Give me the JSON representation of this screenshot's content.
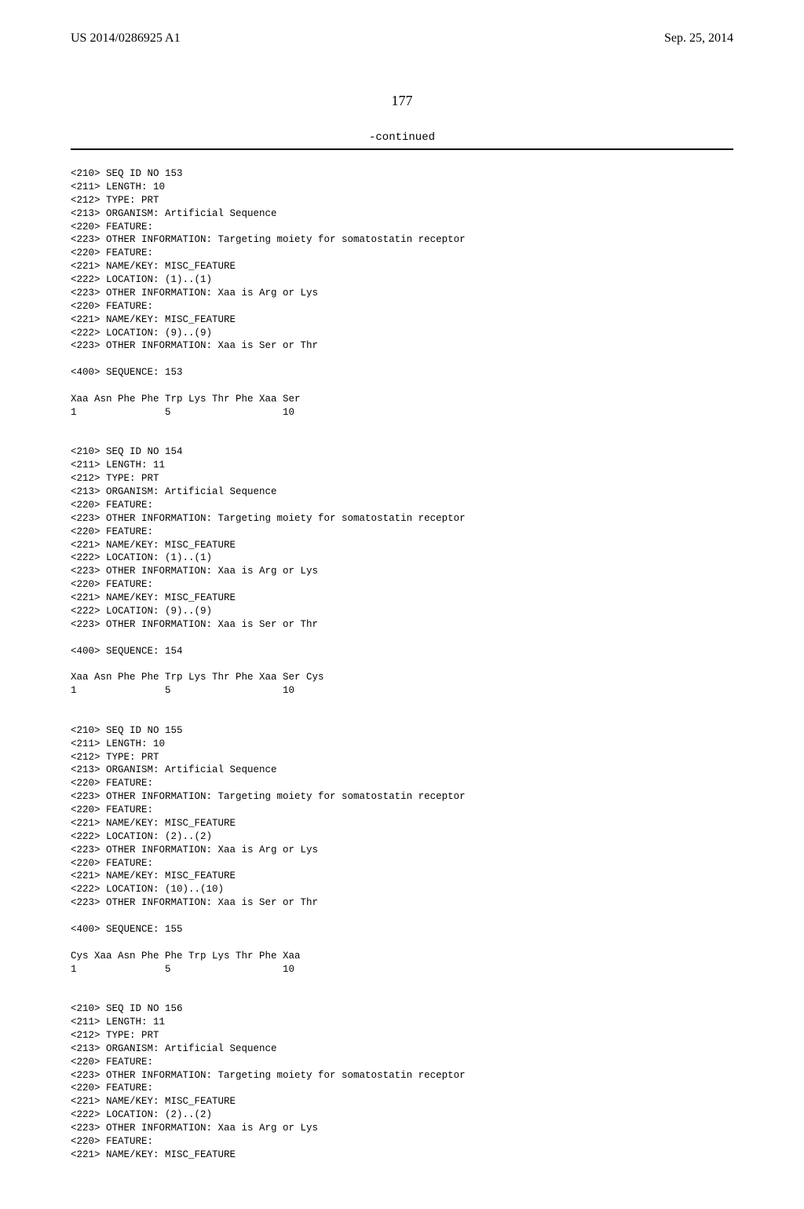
{
  "header": {
    "publication_id": "US 2014/0286925 A1",
    "publication_date": "Sep. 25, 2014"
  },
  "page_number": "177",
  "continued_label": "-continued",
  "blocks": [
    {
      "lines": [
        "<210> SEQ ID NO 153",
        "<211> LENGTH: 10",
        "<212> TYPE: PRT",
        "<213> ORGANISM: Artificial Sequence",
        "<220> FEATURE:",
        "<223> OTHER INFORMATION: Targeting moiety for somatostatin receptor",
        "<220> FEATURE:",
        "<221> NAME/KEY: MISC_FEATURE",
        "<222> LOCATION: (1)..(1)",
        "<223> OTHER INFORMATION: Xaa is Arg or Lys",
        "<220> FEATURE:",
        "<221> NAME/KEY: MISC_FEATURE",
        "<222> LOCATION: (9)..(9)",
        "<223> OTHER INFORMATION: Xaa is Ser or Thr",
        "",
        "<400> SEQUENCE: 153",
        "",
        "Xaa Asn Phe Phe Trp Lys Thr Phe Xaa Ser",
        "1               5                   10",
        "",
        "",
        "<210> SEQ ID NO 154",
        "<211> LENGTH: 11",
        "<212> TYPE: PRT",
        "<213> ORGANISM: Artificial Sequence",
        "<220> FEATURE:",
        "<223> OTHER INFORMATION: Targeting moiety for somatostatin receptor",
        "<220> FEATURE:",
        "<221> NAME/KEY: MISC_FEATURE",
        "<222> LOCATION: (1)..(1)",
        "<223> OTHER INFORMATION: Xaa is Arg or Lys",
        "<220> FEATURE:",
        "<221> NAME/KEY: MISC_FEATURE",
        "<222> LOCATION: (9)..(9)",
        "<223> OTHER INFORMATION: Xaa is Ser or Thr",
        "",
        "<400> SEQUENCE: 154",
        "",
        "Xaa Asn Phe Phe Trp Lys Thr Phe Xaa Ser Cys",
        "1               5                   10",
        "",
        "",
        "<210> SEQ ID NO 155",
        "<211> LENGTH: 10",
        "<212> TYPE: PRT",
        "<213> ORGANISM: Artificial Sequence",
        "<220> FEATURE:",
        "<223> OTHER INFORMATION: Targeting moiety for somatostatin receptor",
        "<220> FEATURE:",
        "<221> NAME/KEY: MISC_FEATURE",
        "<222> LOCATION: (2)..(2)",
        "<223> OTHER INFORMATION: Xaa is Arg or Lys",
        "<220> FEATURE:",
        "<221> NAME/KEY: MISC_FEATURE",
        "<222> LOCATION: (10)..(10)",
        "<223> OTHER INFORMATION: Xaa is Ser or Thr",
        "",
        "<400> SEQUENCE: 155",
        "",
        "Cys Xaa Asn Phe Phe Trp Lys Thr Phe Xaa",
        "1               5                   10",
        "",
        "",
        "<210> SEQ ID NO 156",
        "<211> LENGTH: 11",
        "<212> TYPE: PRT",
        "<213> ORGANISM: Artificial Sequence",
        "<220> FEATURE:",
        "<223> OTHER INFORMATION: Targeting moiety for somatostatin receptor",
        "<220> FEATURE:",
        "<221> NAME/KEY: MISC_FEATURE",
        "<222> LOCATION: (2)..(2)",
        "<223> OTHER INFORMATION: Xaa is Arg or Lys",
        "<220> FEATURE:",
        "<221> NAME/KEY: MISC_FEATURE"
      ]
    }
  ]
}
